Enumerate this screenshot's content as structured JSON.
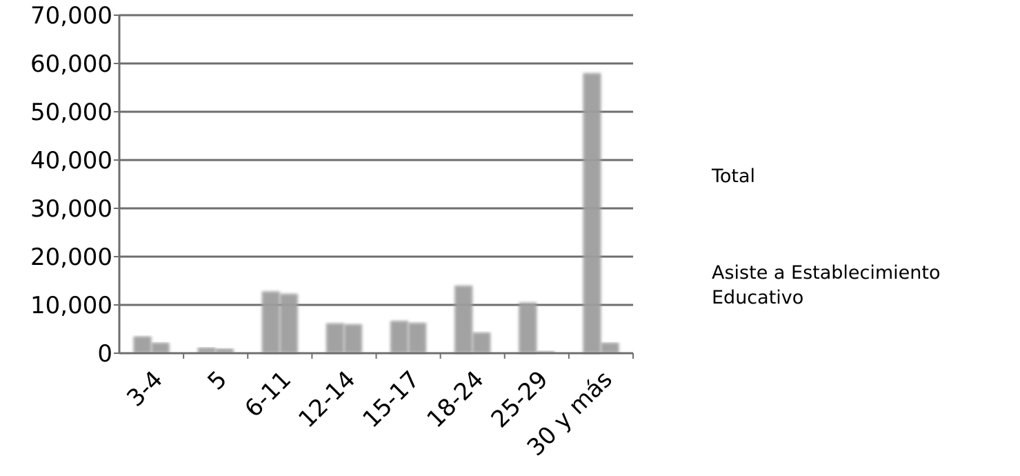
{
  "chart_data": {
    "type": "bar",
    "title": "",
    "xlabel": "",
    "ylabel": "",
    "ylim": [
      0,
      70000
    ],
    "y_ticks": [
      "0",
      "10,000",
      "20,000",
      "30,000",
      "40,000",
      "50,000",
      "60,000",
      "70,000"
    ],
    "y_tick_values": [
      0,
      10000,
      20000,
      30000,
      40000,
      50000,
      60000,
      70000
    ],
    "categories": [
      "3-4",
      "5",
      "6-11",
      "12-14",
      "15-17",
      "18-24",
      "25-29",
      "30 y más"
    ],
    "grid": true,
    "legend_position": "right",
    "series": [
      {
        "name": "Total",
        "color": "#9e9e9e",
        "values": [
          3500,
          1200,
          12800,
          6200,
          6700,
          14000,
          10500,
          58000
        ]
      },
      {
        "name": "Asiste a Establecimiento Educativo",
        "color": "#9e9e9e",
        "values": [
          2200,
          1000,
          12300,
          6000,
          6300,
          4300,
          500,
          2200
        ]
      }
    ]
  },
  "legend": {
    "total_label": "Total",
    "asiste_line1": "Asiste a Establecimiento",
    "asiste_line2": "Educativo"
  }
}
